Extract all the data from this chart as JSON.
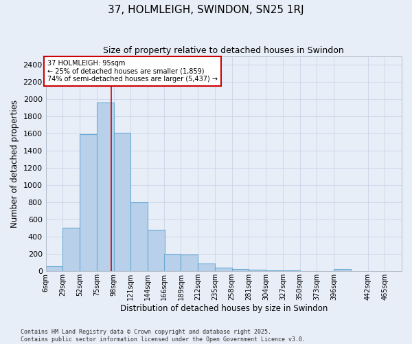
{
  "title": "37, HOLMLEIGH, SWINDON, SN25 1RJ",
  "subtitle": "Size of property relative to detached houses in Swindon",
  "xlabel": "Distribution of detached houses by size in Swindon",
  "ylabel": "Number of detached properties",
  "footer": "Contains HM Land Registry data © Crown copyright and database right 2025.\nContains public sector information licensed under the Open Government Licence v3.0.",
  "bar_values": [
    55,
    510,
    1590,
    1960,
    1610,
    800,
    480,
    200,
    195,
    90,
    40,
    30,
    20,
    10,
    10,
    0,
    0,
    25
  ],
  "bin_left_edges": [
    6,
    29,
    52,
    75,
    98,
    121,
    144,
    166,
    189,
    212,
    235,
    258,
    281,
    304,
    327,
    350,
    373,
    396
  ],
  "bin_width": 23,
  "xtick_positions": [
    6,
    29,
    52,
    75,
    98,
    121,
    144,
    166,
    189,
    212,
    235,
    258,
    281,
    304,
    327,
    350,
    373,
    396,
    442,
    465
  ],
  "xtick_labels": [
    "6sqm",
    "29sqm",
    "52sqm",
    "75sqm",
    "98sqm",
    "121sqm",
    "144sqm",
    "166sqm",
    "189sqm",
    "212sqm",
    "235sqm",
    "258sqm",
    "281sqm",
    "304sqm",
    "327sqm",
    "350sqm",
    "373sqm",
    "396sqm",
    "442sqm",
    "465sqm"
  ],
  "bar_color": "#b8d0ea",
  "bar_edge_color": "#6aaad4",
  "grid_color": "#c8d4e8",
  "background_color": "#e8eef8",
  "vline_x": 95,
  "annotation_text": "37 HOLMLEIGH: 95sqm\n← 25% of detached houses are smaller (1,859)\n74% of semi-detached houses are larger (5,437) →",
  "annotation_box_color": "#ffffff",
  "annotation_edge_color": "#cc0000",
  "vline_color": "#cc0000",
  "ylim": [
    0,
    2500
  ],
  "yticks": [
    0,
    200,
    400,
    600,
    800,
    1000,
    1200,
    1400,
    1600,
    1800,
    2000,
    2200,
    2400
  ],
  "xlim_left": 6,
  "xlim_right": 488
}
